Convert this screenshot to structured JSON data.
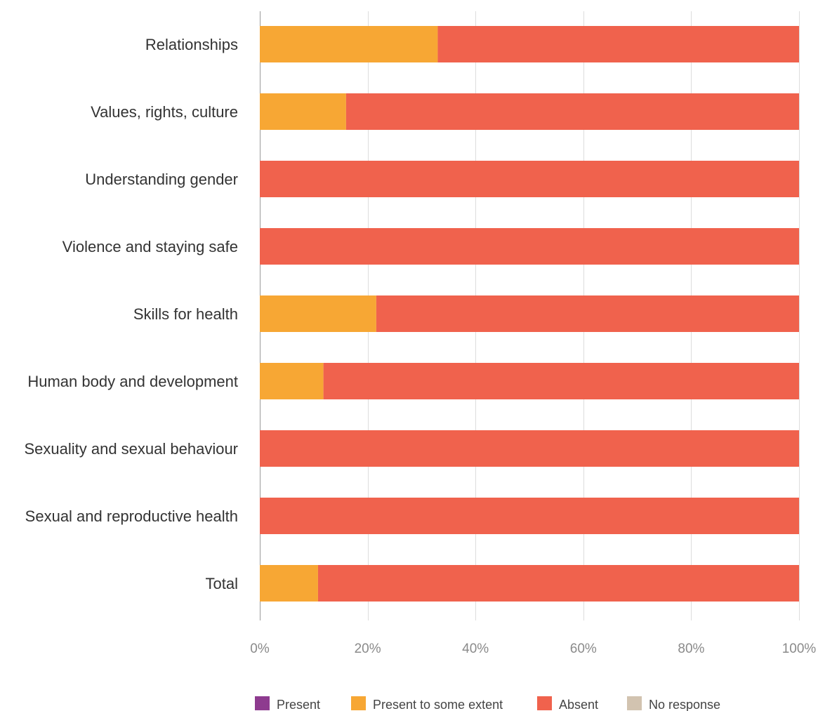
{
  "chart_data": {
    "type": "bar",
    "orientation": "horizontal",
    "stacked": true,
    "categories": [
      "Relationships",
      "Values, rights, culture",
      "Understanding gender",
      "Violence and staying safe",
      "Skills for health",
      "Human body and development",
      "Sexuality and sexual behaviour",
      "Sexual and reproductive health",
      "Total"
    ],
    "series": [
      {
        "name": "Present",
        "color": "#8e3b8f",
        "values": [
          0,
          0,
          0,
          0,
          0,
          0,
          0,
          0,
          0
        ]
      },
      {
        "name": "Present to some extent",
        "color": "#f7a734",
        "values": [
          33,
          16,
          0,
          0,
          21.6,
          11.8,
          0,
          0,
          10.8
        ]
      },
      {
        "name": "Absent",
        "color": "#f0624d",
        "values": [
          67,
          84,
          100,
          100,
          78.4,
          88.2,
          100,
          100,
          89.2
        ]
      },
      {
        "name": "No response",
        "color": "#d2c3b0",
        "values": [
          0,
          0,
          0,
          0,
          0,
          0,
          0,
          0,
          0
        ]
      }
    ],
    "xlim": [
      0,
      100
    ],
    "x_ticks": [
      "0%",
      "20%",
      "40%",
      "60%",
      "80%",
      "100%"
    ],
    "x_unit": "%",
    "grid": true,
    "legend_position": "bottom",
    "title": "",
    "xlabel": "",
    "ylabel": ""
  }
}
